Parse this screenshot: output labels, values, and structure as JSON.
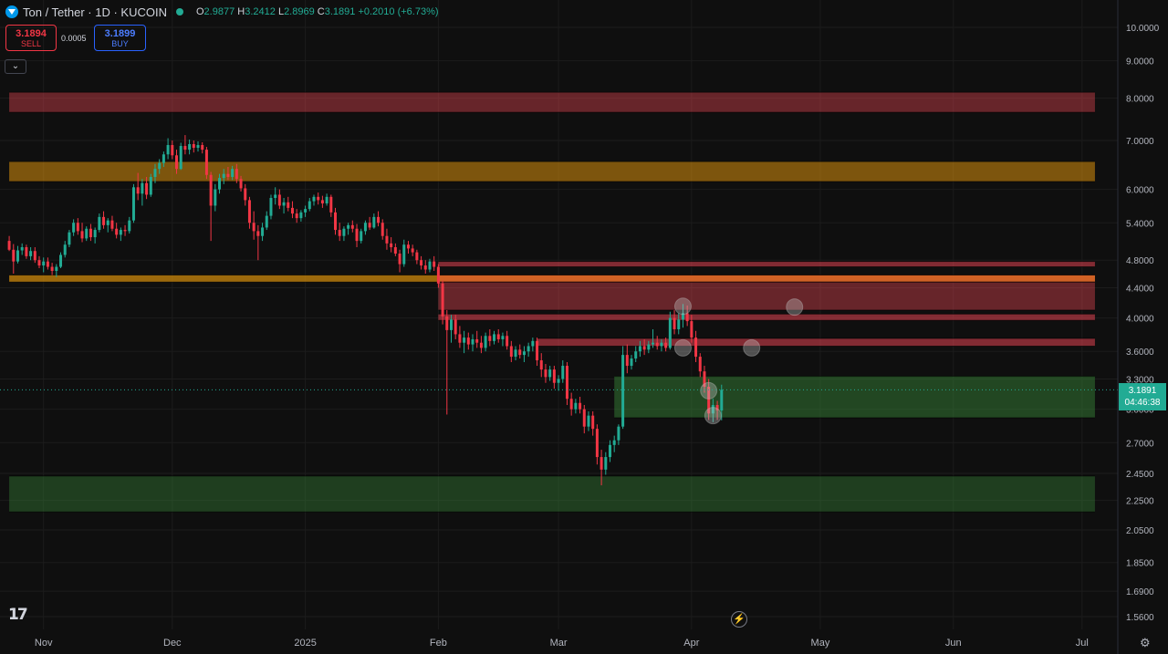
{
  "header": {
    "symbol_title": "Ton / Tether · 1D · KUCOIN",
    "open_label": "O",
    "open": "2.9877",
    "high_label": "H",
    "high": "3.2412",
    "low_label": "L",
    "low": "2.8969",
    "close_label": "C",
    "close": "3.1891",
    "change": "+0.2010 (+6.73%)"
  },
  "trade": {
    "sell_price": "3.1894",
    "sell_label": "SELL",
    "buy_price": "3.1899",
    "buy_label": "BUY",
    "spread": "0.0005"
  },
  "price_tag": {
    "price": "3.1891",
    "countdown": "04:46:38"
  },
  "icons": {
    "logo": "tradingview-logo",
    "bolt": "lightning-icon",
    "settings": "gear-icon",
    "collapse": "chevron-down-icon"
  },
  "logo_text": "TV",
  "colors": {
    "up": "#22ab94",
    "down": "#f23645",
    "background": "#0f0f0f",
    "grid": "#1e1e1e"
  },
  "chart_data": {
    "type": "candlestick",
    "scale": "log",
    "y_ticks": [
      "10.0000",
      "9.0000",
      "8.0000",
      "7.0000",
      "6.0000",
      "5.4000",
      "4.8000",
      "4.4000",
      "4.0000",
      "3.6000",
      "3.3000",
      "3.0000",
      "2.7000",
      "2.4500",
      "2.2500",
      "2.0500",
      "1.8500",
      "1.6900",
      "1.5600"
    ],
    "x_ticks": [
      {
        "label": "Nov",
        "date": "2024-11-01"
      },
      {
        "label": "Dec",
        "date": "2024-12-01"
      },
      {
        "label": "2025",
        "date": "2025-01-01"
      },
      {
        "label": "Feb",
        "date": "2025-02-01"
      },
      {
        "label": "Mar",
        "date": "2025-03-01"
      },
      {
        "label": "Apr",
        "date": "2025-04-01"
      },
      {
        "label": "May",
        "date": "2025-05-01"
      },
      {
        "label": "Jun",
        "date": "2025-06-01"
      },
      {
        "label": "Jul",
        "date": "2025-07-01"
      }
    ],
    "zones": [
      {
        "color": "#e24452",
        "opacity": 0.42,
        "from": "2024-10-24",
        "to": "2025-07-04",
        "top": 8.15,
        "bottom": 7.65
      },
      {
        "color": "#d8900c",
        "opacity": 0.55,
        "from": "2024-10-24",
        "to": "2025-07-04",
        "top": 6.55,
        "bottom": 6.15
      },
      {
        "color": "#d8900c",
        "opacity": 0.7,
        "from": "2024-10-24",
        "to": "2025-07-04",
        "top": 4.58,
        "bottom": 4.48
      },
      {
        "color": "#e24452",
        "opacity": 0.55,
        "from": "2025-02-01",
        "to": "2025-07-04",
        "top": 4.78,
        "bottom": 4.7
      },
      {
        "color": "#e86030",
        "opacity": 0.7,
        "from": "2025-02-01",
        "to": "2025-07-04",
        "top": 4.58,
        "bottom": 4.48
      },
      {
        "color": "#e24452",
        "opacity": 0.42,
        "from": "2025-02-01",
        "to": "2025-07-04",
        "top": 4.48,
        "bottom": 4.1
      },
      {
        "color": "#e24452",
        "opacity": 0.55,
        "from": "2025-02-01",
        "to": "2025-07-04",
        "top": 4.05,
        "bottom": 3.97
      },
      {
        "color": "#e24452",
        "opacity": 0.55,
        "from": "2025-02-24",
        "to": "2025-07-04",
        "top": 3.75,
        "bottom": 3.66
      },
      {
        "color": "#3a8c3a",
        "opacity": 0.45,
        "from": "2025-03-14",
        "to": "2025-07-04",
        "top": 3.33,
        "bottom": 2.92
      },
      {
        "color": "#3a8c3a",
        "opacity": 0.38,
        "from": "2024-10-24",
        "to": "2025-07-04",
        "top": 2.43,
        "bottom": 2.17
      }
    ],
    "markers": [
      {
        "date": "2025-03-30",
        "price": 4.15
      },
      {
        "date": "2025-03-30",
        "price": 3.64
      },
      {
        "date": "2025-04-05",
        "price": 3.18
      },
      {
        "date": "2025-04-06",
        "price": 2.94
      },
      {
        "date": "2025-04-15",
        "price": 3.64
      },
      {
        "date": "2025-04-25",
        "price": 4.14
      }
    ],
    "last_price": 3.1891,
    "candles": [
      [
        "2024-10-24",
        5.1,
        5.18,
        4.94,
        4.96
      ],
      [
        "2024-10-25",
        4.96,
        5.05,
        4.6,
        4.78
      ],
      [
        "2024-10-26",
        4.78,
        5.02,
        4.75,
        4.95
      ],
      [
        "2024-10-27",
        4.95,
        5.06,
        4.88,
        5.0
      ],
      [
        "2024-10-28",
        5.0,
        5.04,
        4.82,
        4.86
      ],
      [
        "2024-10-29",
        4.86,
        5.0,
        4.8,
        4.94
      ],
      [
        "2024-10-30",
        4.94,
        5.0,
        4.76,
        4.8
      ],
      [
        "2024-10-31",
        4.8,
        4.86,
        4.68,
        4.72
      ],
      [
        "2024-11-01",
        4.72,
        4.84,
        4.62,
        4.78
      ],
      [
        "2024-11-02",
        4.78,
        4.84,
        4.66,
        4.7
      ],
      [
        "2024-11-03",
        4.7,
        4.76,
        4.58,
        4.64
      ],
      [
        "2024-11-04",
        4.64,
        4.74,
        4.55,
        4.7
      ],
      [
        "2024-11-05",
        4.7,
        4.92,
        4.68,
        4.88
      ],
      [
        "2024-11-06",
        4.88,
        5.1,
        4.84,
        5.04
      ],
      [
        "2024-11-07",
        5.04,
        5.28,
        5.0,
        5.24
      ],
      [
        "2024-11-08",
        5.24,
        5.46,
        5.18,
        5.4
      ],
      [
        "2024-11-09",
        5.4,
        5.48,
        5.2,
        5.26
      ],
      [
        "2024-11-10",
        5.26,
        5.4,
        5.08,
        5.14
      ],
      [
        "2024-11-11",
        5.14,
        5.34,
        5.1,
        5.3
      ],
      [
        "2024-11-12",
        5.3,
        5.38,
        5.1,
        5.16
      ],
      [
        "2024-11-13",
        5.16,
        5.32,
        5.06,
        5.28
      ],
      [
        "2024-11-14",
        5.28,
        5.56,
        5.24,
        5.5
      ],
      [
        "2024-11-15",
        5.5,
        5.6,
        5.3,
        5.36
      ],
      [
        "2024-11-16",
        5.36,
        5.48,
        5.24,
        5.44
      ],
      [
        "2024-11-17",
        5.44,
        5.52,
        5.26,
        5.3
      ],
      [
        "2024-11-18",
        5.3,
        5.4,
        5.14,
        5.2
      ],
      [
        "2024-11-19",
        5.2,
        5.32,
        5.1,
        5.28
      ],
      [
        "2024-11-20",
        5.28,
        5.36,
        5.18,
        5.26
      ],
      [
        "2024-11-21",
        5.26,
        5.5,
        5.22,
        5.44
      ],
      [
        "2024-11-22",
        5.44,
        6.1,
        5.4,
        6.04
      ],
      [
        "2024-11-23",
        6.04,
        6.32,
        5.8,
        5.92
      ],
      [
        "2024-11-24",
        5.92,
        6.2,
        5.7,
        6.12
      ],
      [
        "2024-11-25",
        6.12,
        6.24,
        5.82,
        5.9
      ],
      [
        "2024-11-26",
        5.9,
        6.3,
        5.86,
        6.24
      ],
      [
        "2024-11-27",
        6.24,
        6.5,
        6.12,
        6.4
      ],
      [
        "2024-11-28",
        6.4,
        6.6,
        6.3,
        6.52
      ],
      [
        "2024-11-29",
        6.52,
        6.76,
        6.44,
        6.7
      ],
      [
        "2024-11-30",
        6.7,
        7.05,
        6.6,
        6.9
      ],
      [
        "2024-12-01",
        6.9,
        7.0,
        6.6,
        6.68
      ],
      [
        "2024-12-02",
        6.68,
        6.8,
        6.3,
        6.4
      ],
      [
        "2024-12-03",
        6.4,
        6.95,
        6.38,
        6.88
      ],
      [
        "2024-12-04",
        6.88,
        7.12,
        6.7,
        6.8
      ],
      [
        "2024-12-05",
        6.8,
        7.02,
        6.7,
        6.92
      ],
      [
        "2024-12-06",
        6.92,
        7.0,
        6.74,
        6.84
      ],
      [
        "2024-12-07",
        6.84,
        6.98,
        6.76,
        6.9
      ],
      [
        "2024-12-08",
        6.9,
        6.96,
        6.72,
        6.8
      ],
      [
        "2024-12-09",
        6.8,
        6.86,
        6.2,
        6.28
      ],
      [
        "2024-12-10",
        6.28,
        6.34,
        5.1,
        5.7
      ],
      [
        "2024-12-11",
        5.7,
        6.1,
        5.6,
        6.0
      ],
      [
        "2024-12-12",
        6.0,
        6.3,
        5.92,
        6.22
      ],
      [
        "2024-12-13",
        6.22,
        6.4,
        6.1,
        6.3
      ],
      [
        "2024-12-14",
        6.3,
        6.44,
        6.18,
        6.24
      ],
      [
        "2024-12-15",
        6.24,
        6.46,
        6.18,
        6.4
      ],
      [
        "2024-12-16",
        6.4,
        6.5,
        6.12,
        6.2
      ],
      [
        "2024-12-17",
        6.2,
        6.26,
        5.96,
        6.02
      ],
      [
        "2024-12-18",
        6.02,
        6.1,
        5.7,
        5.8
      ],
      [
        "2024-12-19",
        5.8,
        5.86,
        5.3,
        5.4
      ],
      [
        "2024-12-20",
        5.4,
        5.6,
        5.12,
        5.26
      ],
      [
        "2024-12-21",
        5.26,
        5.36,
        4.8,
        5.18
      ],
      [
        "2024-12-22",
        5.18,
        5.4,
        5.1,
        5.32
      ],
      [
        "2024-12-23",
        5.32,
        5.6,
        5.28,
        5.52
      ],
      [
        "2024-12-24",
        5.52,
        5.9,
        5.46,
        5.84
      ],
      [
        "2024-12-25",
        5.84,
        6.04,
        5.72,
        5.9
      ],
      [
        "2024-12-26",
        5.9,
        6.0,
        5.64,
        5.7
      ],
      [
        "2024-12-27",
        5.7,
        5.84,
        5.56,
        5.76
      ],
      [
        "2024-12-28",
        5.76,
        5.86,
        5.6,
        5.66
      ],
      [
        "2024-12-29",
        5.66,
        5.78,
        5.48,
        5.56
      ],
      [
        "2024-12-30",
        5.56,
        5.64,
        5.4,
        5.48
      ],
      [
        "2024-12-31",
        5.48,
        5.62,
        5.42,
        5.58
      ],
      [
        "2025-01-01",
        5.58,
        5.7,
        5.5,
        5.64
      ],
      [
        "2025-01-02",
        5.64,
        5.84,
        5.6,
        5.78
      ],
      [
        "2025-01-03",
        5.78,
        5.9,
        5.7,
        5.86
      ],
      [
        "2025-01-04",
        5.86,
        5.94,
        5.72,
        5.8
      ],
      [
        "2025-01-05",
        5.8,
        5.88,
        5.66,
        5.74
      ],
      [
        "2025-01-06",
        5.74,
        5.92,
        5.7,
        5.86
      ],
      [
        "2025-01-07",
        5.86,
        5.9,
        5.5,
        5.58
      ],
      [
        "2025-01-08",
        5.58,
        5.66,
        5.2,
        5.28
      ],
      [
        "2025-01-09",
        5.28,
        5.4,
        5.1,
        5.18
      ],
      [
        "2025-01-10",
        5.18,
        5.34,
        5.1,
        5.3
      ],
      [
        "2025-01-11",
        5.3,
        5.4,
        5.2,
        5.36
      ],
      [
        "2025-01-12",
        5.36,
        5.44,
        5.24,
        5.3
      ],
      [
        "2025-01-13",
        5.3,
        5.38,
        5.0,
        5.1
      ],
      [
        "2025-01-14",
        5.1,
        5.3,
        5.06,
        5.26
      ],
      [
        "2025-01-15",
        5.26,
        5.44,
        5.2,
        5.4
      ],
      [
        "2025-01-16",
        5.4,
        5.5,
        5.28,
        5.32
      ],
      [
        "2025-01-17",
        5.32,
        5.56,
        5.3,
        5.5
      ],
      [
        "2025-01-18",
        5.5,
        5.6,
        5.34,
        5.4
      ],
      [
        "2025-01-19",
        5.4,
        5.46,
        5.12,
        5.18
      ],
      [
        "2025-01-20",
        5.18,
        5.3,
        4.96,
        5.06
      ],
      [
        "2025-01-21",
        5.06,
        5.16,
        4.92,
        5.0
      ],
      [
        "2025-01-22",
        5.0,
        5.06,
        4.86,
        4.9
      ],
      [
        "2025-01-23",
        4.9,
        4.96,
        4.62,
        4.74
      ],
      [
        "2025-01-24",
        4.74,
        5.12,
        4.7,
        5.04
      ],
      [
        "2025-01-25",
        5.04,
        5.1,
        4.9,
        4.98
      ],
      [
        "2025-01-26",
        4.98,
        5.04,
        4.86,
        4.92
      ],
      [
        "2025-01-27",
        4.92,
        4.96,
        4.74,
        4.8
      ],
      [
        "2025-01-28",
        4.8,
        4.86,
        4.66,
        4.72
      ],
      [
        "2025-01-29",
        4.72,
        4.8,
        4.6,
        4.66
      ],
      [
        "2025-01-30",
        4.66,
        4.82,
        4.62,
        4.78
      ],
      [
        "2025-01-31",
        4.78,
        4.86,
        4.64,
        4.7
      ],
      [
        "2025-02-01",
        4.7,
        4.74,
        4.4,
        4.46
      ],
      [
        "2025-02-02",
        4.46,
        4.5,
        3.92,
        4.02
      ],
      [
        "2025-02-03",
        4.02,
        4.1,
        2.95,
        3.85
      ],
      [
        "2025-02-04",
        3.85,
        4.04,
        3.7,
        3.98
      ],
      [
        "2025-02-05",
        3.98,
        4.04,
        3.74,
        3.8
      ],
      [
        "2025-02-06",
        3.8,
        3.9,
        3.64,
        3.7
      ],
      [
        "2025-02-07",
        3.7,
        3.84,
        3.58,
        3.76
      ],
      [
        "2025-02-08",
        3.76,
        3.82,
        3.62,
        3.68
      ],
      [
        "2025-02-09",
        3.68,
        3.8,
        3.6,
        3.74
      ],
      [
        "2025-02-10",
        3.74,
        3.84,
        3.64,
        3.7
      ],
      [
        "2025-02-11",
        3.7,
        3.78,
        3.58,
        3.64
      ],
      [
        "2025-02-12",
        3.64,
        3.82,
        3.6,
        3.78
      ],
      [
        "2025-02-13",
        3.78,
        3.86,
        3.66,
        3.72
      ],
      [
        "2025-02-14",
        3.72,
        3.84,
        3.68,
        3.8
      ],
      [
        "2025-02-15",
        3.8,
        3.86,
        3.7,
        3.74
      ],
      [
        "2025-02-16",
        3.74,
        3.82,
        3.66,
        3.78
      ],
      [
        "2025-02-17",
        3.78,
        3.84,
        3.62,
        3.66
      ],
      [
        "2025-02-18",
        3.66,
        3.72,
        3.48,
        3.54
      ],
      [
        "2025-02-19",
        3.54,
        3.66,
        3.5,
        3.62
      ],
      [
        "2025-02-20",
        3.62,
        3.68,
        3.52,
        3.56
      ],
      [
        "2025-02-21",
        3.56,
        3.66,
        3.48,
        3.6
      ],
      [
        "2025-02-22",
        3.6,
        3.7,
        3.54,
        3.66
      ],
      [
        "2025-02-23",
        3.66,
        3.76,
        3.6,
        3.72
      ],
      [
        "2025-02-24",
        3.72,
        3.76,
        3.44,
        3.5
      ],
      [
        "2025-02-25",
        3.5,
        3.58,
        3.32,
        3.4
      ],
      [
        "2025-02-26",
        3.4,
        3.46,
        3.26,
        3.32
      ],
      [
        "2025-02-27",
        3.32,
        3.44,
        3.28,
        3.4
      ],
      [
        "2025-02-28",
        3.4,
        3.44,
        3.2,
        3.26
      ],
      [
        "2025-03-01",
        3.26,
        3.34,
        3.18,
        3.3
      ],
      [
        "2025-03-02",
        3.3,
        3.5,
        3.26,
        3.44
      ],
      [
        "2025-03-03",
        3.44,
        3.48,
        3.04,
        3.1
      ],
      [
        "2025-03-04",
        3.1,
        3.16,
        2.94,
        3.0
      ],
      [
        "2025-03-05",
        3.0,
        3.1,
        2.96,
        3.06
      ],
      [
        "2025-03-06",
        3.06,
        3.12,
        2.96,
        3.0
      ],
      [
        "2025-03-07",
        3.0,
        3.04,
        2.78,
        2.84
      ],
      [
        "2025-03-08",
        2.84,
        2.98,
        2.8,
        2.94
      ],
      [
        "2025-03-09",
        2.94,
        2.98,
        2.76,
        2.82
      ],
      [
        "2025-03-10",
        2.82,
        2.86,
        2.52,
        2.58
      ],
      [
        "2025-03-11",
        2.58,
        2.64,
        2.36,
        2.48
      ],
      [
        "2025-03-12",
        2.48,
        2.62,
        2.44,
        2.58
      ],
      [
        "2025-03-13",
        2.58,
        2.72,
        2.54,
        2.68
      ],
      [
        "2025-03-14",
        2.68,
        2.76,
        2.62,
        2.72
      ],
      [
        "2025-03-15",
        2.72,
        2.86,
        2.68,
        2.84
      ],
      [
        "2025-03-16",
        2.84,
        3.66,
        2.82,
        3.56
      ],
      [
        "2025-03-17",
        3.56,
        3.68,
        3.36,
        3.44
      ],
      [
        "2025-03-18",
        3.44,
        3.56,
        3.4,
        3.52
      ],
      [
        "2025-03-19",
        3.52,
        3.66,
        3.48,
        3.6
      ],
      [
        "2025-03-20",
        3.6,
        3.72,
        3.54,
        3.66
      ],
      [
        "2025-03-21",
        3.66,
        3.74,
        3.56,
        3.62
      ],
      [
        "2025-03-22",
        3.62,
        3.72,
        3.58,
        3.68
      ],
      [
        "2025-03-23",
        3.68,
        3.86,
        3.64,
        3.7
      ],
      [
        "2025-03-24",
        3.7,
        3.78,
        3.62,
        3.66
      ],
      [
        "2025-03-25",
        3.66,
        3.74,
        3.6,
        3.7
      ],
      [
        "2025-03-26",
        3.7,
        3.76,
        3.6,
        3.64
      ],
      [
        "2025-03-27",
        3.64,
        4.08,
        3.62,
        4.0
      ],
      [
        "2025-03-28",
        4.0,
        4.1,
        3.8,
        3.86
      ],
      [
        "2025-03-29",
        3.86,
        4.06,
        3.8,
        3.98
      ],
      [
        "2025-03-30",
        3.98,
        4.18,
        3.88,
        4.06
      ],
      [
        "2025-03-31",
        4.06,
        4.16,
        3.9,
        3.96
      ],
      [
        "2025-04-01",
        3.96,
        4.04,
        3.7,
        3.76
      ],
      [
        "2025-04-02",
        3.76,
        3.84,
        3.48,
        3.54
      ],
      [
        "2025-04-03",
        3.54,
        3.58,
        3.32,
        3.38
      ],
      [
        "2025-04-04",
        3.38,
        3.44,
        3.16,
        3.22
      ],
      [
        "2025-04-05",
        3.22,
        3.3,
        2.9,
        2.96
      ],
      [
        "2025-04-06",
        2.96,
        3.1,
        2.88,
        3.04
      ],
      [
        "2025-04-07",
        3.04,
        3.08,
        2.9,
        2.99
      ],
      [
        "2025-04-08",
        2.9877,
        3.2412,
        2.8969,
        3.1891
      ]
    ]
  }
}
